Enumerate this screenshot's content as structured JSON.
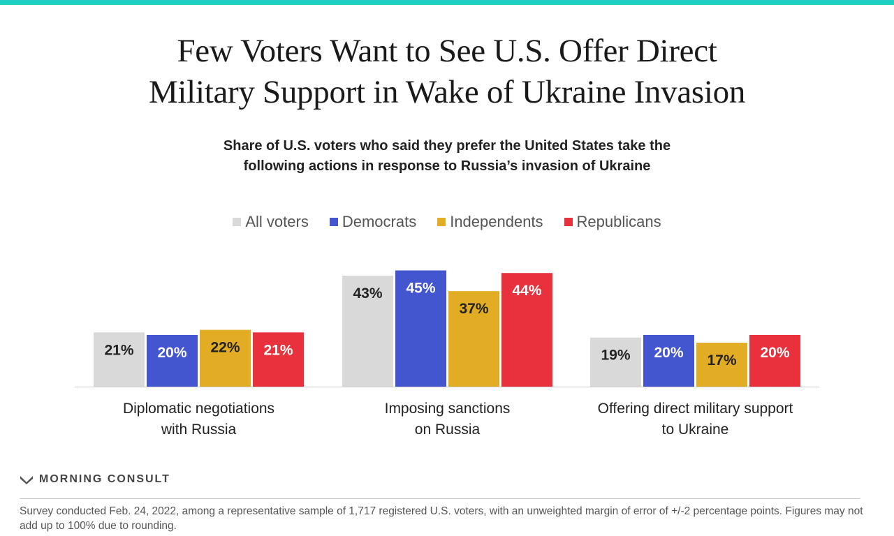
{
  "title_lines": [
    "Few Voters Want to See U.S. Offer Direct",
    "Military Support in Wake of Ukraine Invasion"
  ],
  "subtitle_lines": [
    "Share of U.S. voters who said they prefer the United States take the",
    "following actions in response to Russia’s invasion of Ukraine"
  ],
  "brand": "MORNING CONSULT",
  "footnote": "Survey conducted Feb. 24, 2022, among a representative sample of 1,717 registered U.S. voters, with an unweighted margin of error of +/-2 percentage points. Figures may not add up to 100% due to rounding.",
  "colors": {
    "accent_stripe": "#1fcfc4",
    "all_voters": "#d9d9d9",
    "democrats": "#4355cf",
    "independents": "#e2ad24",
    "republicans": "#e8313c"
  },
  "chart_data": {
    "type": "bar",
    "categories": [
      [
        "Diplomatic negotiations",
        "with Russia"
      ],
      [
        "Imposing sanctions",
        "on Russia"
      ],
      [
        "Offering direct military support",
        "to Ukraine"
      ]
    ],
    "series": [
      {
        "name": "All voters",
        "color": "#d9d9d9",
        "label_color": "#222222",
        "values": [
          21,
          43,
          19
        ]
      },
      {
        "name": "Democrats",
        "color": "#4355cf",
        "label_color": "#ffffff",
        "values": [
          20,
          45,
          20
        ]
      },
      {
        "name": "Independents",
        "color": "#e2ad24",
        "label_color": "#222222",
        "values": [
          22,
          37,
          17
        ]
      },
      {
        "name": "Republicans",
        "color": "#e8313c",
        "label_color": "#ffffff",
        "values": [
          21,
          44,
          20
        ]
      }
    ],
    "value_suffix": "%",
    "legend_position": "top",
    "grid": false
  }
}
